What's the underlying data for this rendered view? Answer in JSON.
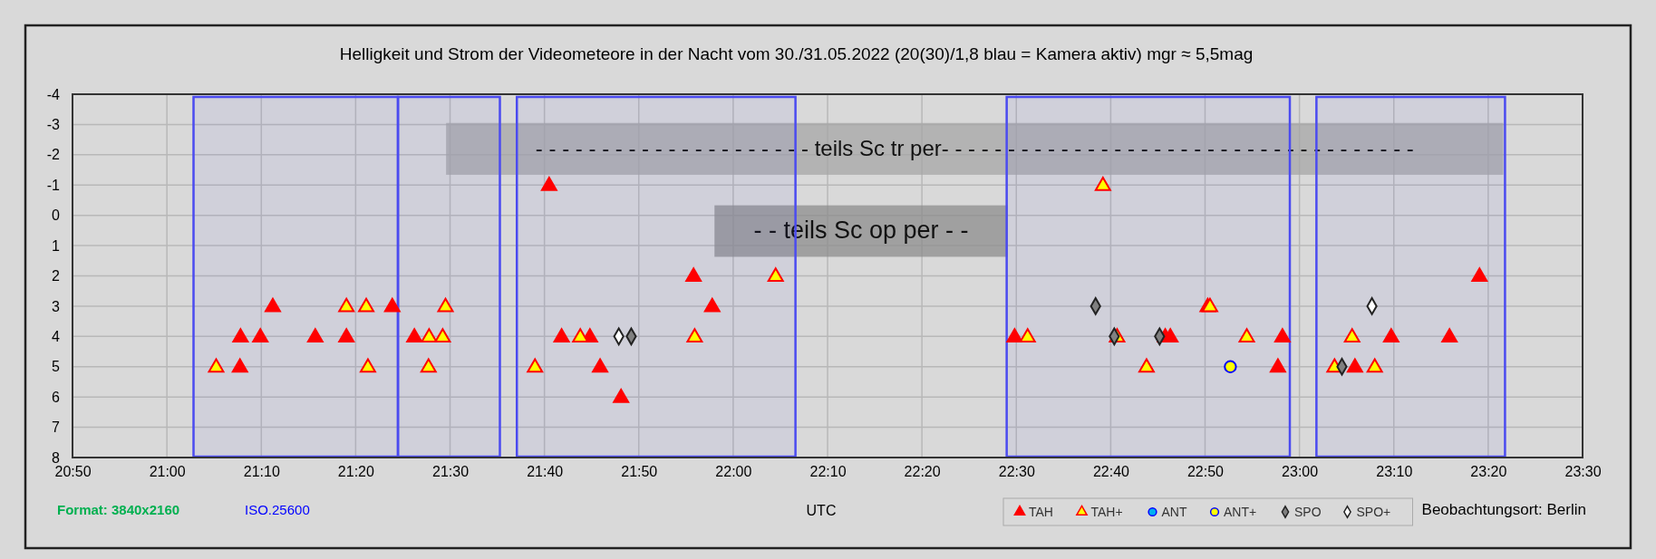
{
  "chart_data": {
    "type": "scatter",
    "title": "Helligkeit und Strom der Videometeore in der Nacht vom 30./31.05.2022  (20(30)/1,8 blau = Kamera aktiv) mgr ≈ 5,5mag",
    "xlabel": "UTC",
    "xlim": [
      20.8333,
      23.5
    ],
    "xticks": [
      {
        "value": 20.8333,
        "label": "20:50"
      },
      {
        "value": 21,
        "label": "21:00"
      },
      {
        "value": 21.1667,
        "label": "21:10"
      },
      {
        "value": 21.3333,
        "label": "21:20"
      },
      {
        "value": 21.5,
        "label": "21:30"
      },
      {
        "value": 21.6667,
        "label": "21:40"
      },
      {
        "value": 21.8333,
        "label": "21:50"
      },
      {
        "value": 22,
        "label": "22:00"
      },
      {
        "value": 22.1667,
        "label": "22:10"
      },
      {
        "value": 22.3333,
        "label": "22:20"
      },
      {
        "value": 22.5,
        "label": "22:30"
      },
      {
        "value": 22.6667,
        "label": "22:40"
      },
      {
        "value": 22.8333,
        "label": "22:50"
      },
      {
        "value": 23,
        "label": "23:00"
      },
      {
        "value": 23.1667,
        "label": "23:10"
      },
      {
        "value": 23.3333,
        "label": "23:20"
      },
      {
        "value": 23.5,
        "label": "23:30"
      }
    ],
    "ylim": [
      8,
      -4
    ],
    "yticks": [
      -4,
      -3,
      -2,
      -1,
      0,
      1,
      2,
      3,
      4,
      5,
      6,
      7,
      8
    ],
    "grid": true,
    "legend": "bottom",
    "bands": [
      {
        "axis": "x",
        "from": 21.047,
        "to": 21.408,
        "color": "#4b4bf0"
      },
      {
        "axis": "x",
        "from": 21.408,
        "to": 21.588,
        "color": "#4b4bf0"
      },
      {
        "axis": "x",
        "from": 21.618,
        "to": 22.11,
        "color": "#4b4bf0"
      },
      {
        "axis": "x",
        "from": 22.483,
        "to": 22.983,
        "color": "#4b4bf0"
      },
      {
        "axis": "x",
        "from": 23.03,
        "to": 23.363,
        "color": "#4b4bf0"
      }
    ],
    "annotations": [
      "- - -  - - - - - - - - - - - - - - - - - - teils Sc tr per- - - - - - - - - - - - - - - - - - - - - - - - - - - - - - - - - - - -",
      "- - teils Sc op per - -",
      "Format:  3840x2160",
      "ISO.25600",
      "Beobachtungsort: Berlin"
    ],
    "series": [
      {
        "name": "TAH",
        "color": "#ff0000",
        "marker": "triangle",
        "x": [
          21.129,
          21.13,
          21.165,
          21.187,
          21.262,
          21.317,
          21.398,
          21.437,
          21.675,
          21.697,
          21.747,
          21.765,
          21.802,
          21.93,
          21.963,
          22.497,
          22.763,
          22.772,
          22.838,
          22.962,
          22.97,
          23.098,
          23.162,
          23.265,
          23.318
        ],
        "values": [
          5,
          4,
          4,
          3,
          4,
          4,
          3,
          4,
          -1,
          4,
          4,
          5,
          6,
          2,
          3,
          4,
          4,
          4,
          3,
          5,
          4,
          5,
          4,
          4,
          2
        ]
      },
      {
        "name": "TAH+",
        "color": "#ffff00",
        "marker": "triangle",
        "x": [
          21.087,
          21.317,
          21.352,
          21.355,
          21.463,
          21.462,
          21.487,
          21.492,
          21.65,
          21.73,
          21.932,
          22.075,
          22.52,
          22.653,
          22.678,
          22.73,
          22.842,
          22.907,
          23.062,
          23.093,
          23.133
        ],
        "values": [
          5,
          3,
          3,
          5,
          4,
          5,
          4,
          3,
          5,
          4,
          4,
          2,
          4,
          -1,
          4,
          5,
          3,
          4,
          5,
          4,
          5
        ]
      },
      {
        "name": "ANT",
        "color": "#00b0f0",
        "marker": "circle"
      },
      {
        "name": "ANT+",
        "color": "#ffff00",
        "marker": "circle",
        "x": [
          22.878
        ],
        "values": [
          5
        ]
      },
      {
        "name": "SPO",
        "color": "#808080",
        "marker": "diamond",
        "x": [
          21.82,
          22.64,
          22.673,
          22.753,
          23.075
        ],
        "values": [
          4,
          3,
          4,
          4,
          5
        ]
      },
      {
        "name": "SPO+",
        "color": "#ffffff",
        "marker": "diamond",
        "x": [
          21.798,
          23.128
        ],
        "values": [
          4,
          3
        ]
      }
    ]
  }
}
